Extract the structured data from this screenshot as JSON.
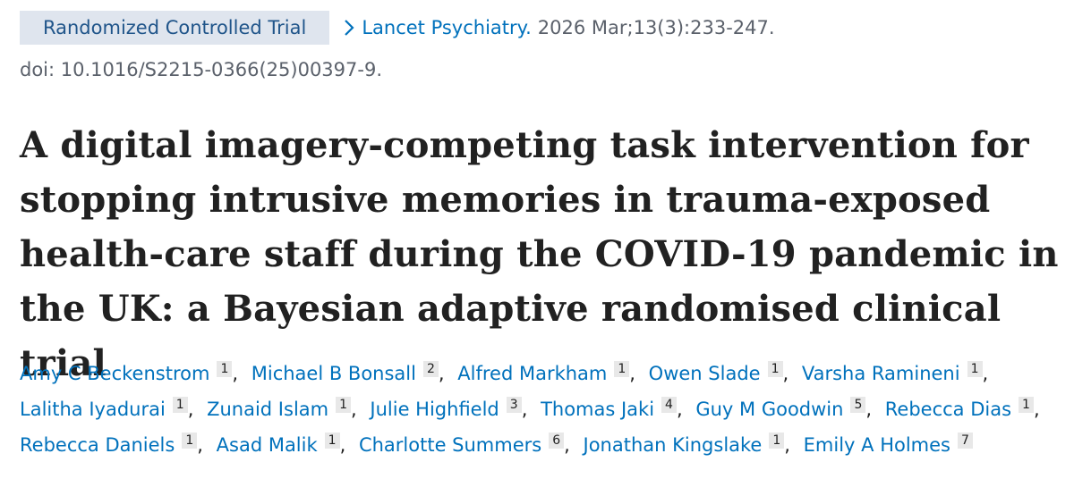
{
  "header": {
    "publication_type": "Randomized Controlled Trial",
    "journal": "Lancet Psychiatry.",
    "citation": "2026 Mar;13(3):233-247.",
    "doi": "doi: 10.1016/S2215-0366(25)00397-9."
  },
  "title": "A digital imagery-competing task intervention for stopping intrusive memories in trauma-exposed health-care staff during the COVID-19 pandemic in the UK: a Bayesian adaptive randomised clinical trial",
  "separator": ",",
  "authors": [
    {
      "name": "Amy C Beckenstrom",
      "affiliation": 1
    },
    {
      "name": "Michael B Bonsall",
      "affiliation": 2
    },
    {
      "name": "Alfred Markham",
      "affiliation": 1
    },
    {
      "name": "Owen Slade",
      "affiliation": 1
    },
    {
      "name": "Varsha Ramineni",
      "affiliation": 1
    },
    {
      "name": "Lalitha Iyadurai",
      "affiliation": 1
    },
    {
      "name": "Zunaid Islam",
      "affiliation": 1
    },
    {
      "name": "Julie Highfield",
      "affiliation": 3
    },
    {
      "name": "Thomas Jaki",
      "affiliation": 4
    },
    {
      "name": "Guy M Goodwin",
      "affiliation": 5
    },
    {
      "name": "Rebecca Dias",
      "affiliation": 1
    },
    {
      "name": "Rebecca Daniels",
      "affiliation": 1
    },
    {
      "name": "Asad Malik",
      "affiliation": 1
    },
    {
      "name": "Charlotte Summers",
      "affiliation": 6
    },
    {
      "name": "Jonathan Kingslake",
      "affiliation": 1
    },
    {
      "name": "Emily A Holmes",
      "affiliation": 7
    }
  ]
}
